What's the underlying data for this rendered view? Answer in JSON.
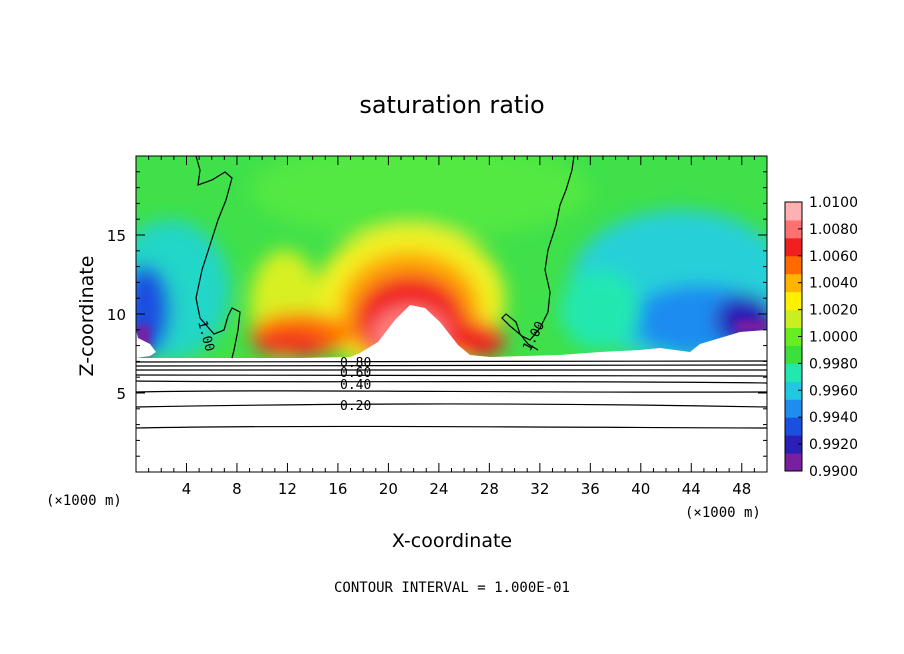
{
  "chart_data": {
    "type": "heatmap",
    "title": "saturation ratio",
    "xlabel": "X-coordinate",
    "ylabel": "Z-coordinate",
    "x_unit_label": "(×1000 m)",
    "footer": "CONTOUR INTERVAL = 1.000E-01",
    "xlim": [
      0,
      50
    ],
    "ylim": [
      0,
      20
    ],
    "x_ticks": [
      4,
      8,
      12,
      16,
      20,
      24,
      28,
      32,
      36,
      40,
      44,
      48
    ],
    "x_tick_labels": [
      "4",
      "8",
      "12",
      "16",
      "20",
      "24",
      "28",
      "32",
      "36",
      "40",
      "44",
      "48"
    ],
    "y_ticks": [
      5,
      10,
      15
    ],
    "y_tick_labels": [
      "5",
      "10",
      "15"
    ],
    "colorbar": {
      "min": 0.99,
      "max": 1.01,
      "tick_values": [
        0.99,
        0.992,
        0.994,
        0.996,
        0.998,
        1.0,
        1.002,
        1.004,
        1.006,
        1.008,
        1.01
      ],
      "tick_labels": [
        "0.9900",
        "0.9920",
        "0.9940",
        "0.9960",
        "0.9980",
        "1.0000",
        "1.0020",
        "1.0040",
        "1.0060",
        "1.0080",
        "1.0100"
      ],
      "colors": [
        "#7a1fa0",
        "#2a1fb8",
        "#1a4fe0",
        "#1f8cf0",
        "#22c8e0",
        "#22e8b0",
        "#3ce03c",
        "#66ee22",
        "#c8f020",
        "#fff000",
        "#ffb400",
        "#ff6a00",
        "#f02020",
        "#ff7070",
        "#ffb0b0"
      ]
    },
    "contour_labels": [
      "1.00",
      "1.00",
      "0.80",
      "0.60",
      "0.40",
      "0.20"
    ],
    "contour_levels_below_cloud_base": [
      0.2,
      0.4,
      0.6,
      0.8
    ],
    "cloud_base_height": 7.2
  }
}
